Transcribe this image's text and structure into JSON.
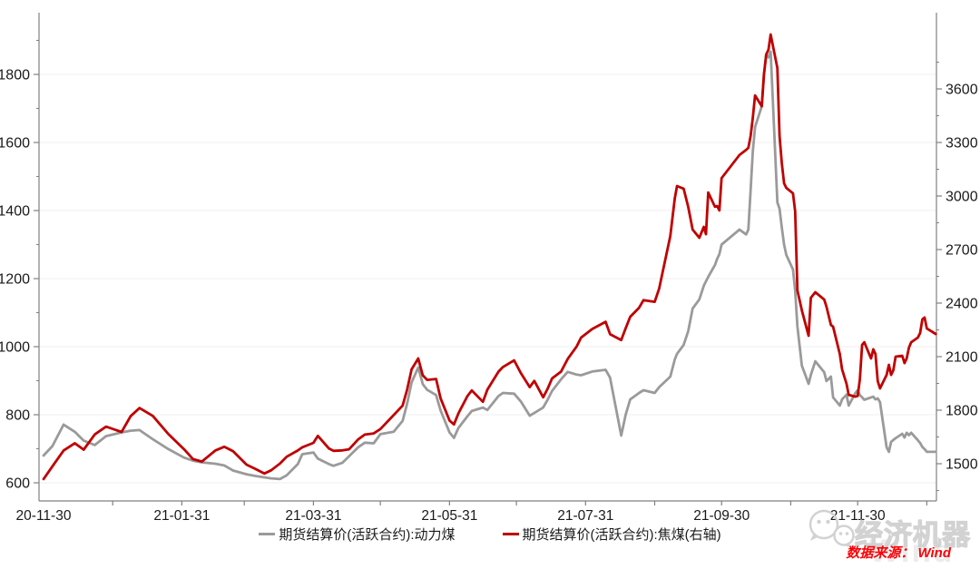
{
  "chart_data": {
    "type": "line",
    "title": "",
    "grid": "horizontal-left-axis-majors",
    "legend_position": "bottom-center",
    "left_axis": {
      "ticks": [
        600,
        800,
        1000,
        1200,
        1400,
        1600,
        1800
      ],
      "minor_step": 100
    },
    "right_axis": {
      "ticks": [
        1500,
        1800,
        2100,
        2400,
        2700,
        3000,
        3300,
        3600
      ],
      "minor_step": 150
    },
    "x_axis": {
      "start_date": "2020-11-30",
      "month_ticks": [
        "2020-12-31",
        "2021-01-31",
        "2021-02-28",
        "2021-03-31",
        "2021-04-30",
        "2021-05-31",
        "2021-06-30",
        "2021-07-31",
        "2021-08-31",
        "2021-09-30",
        "2021-10-31",
        "2021-11-30",
        "2021-12-31"
      ],
      "labeled_ticks": [
        {
          "label": "20-11-30",
          "date": "2020-11-30"
        },
        {
          "label": "21-01-31",
          "date": "2021-01-31"
        },
        {
          "label": "21-03-31",
          "date": "2021-03-31"
        },
        {
          "label": "21-05-31",
          "date": "2021-05-31"
        },
        {
          "label": "21-07-31",
          "date": "2021-07-31"
        },
        {
          "label": "21-09-30",
          "date": "2021-09-30"
        },
        {
          "label": "21-11-30",
          "date": "2021-11-30"
        }
      ]
    },
    "dates": [
      "2020-11-30",
      "2020-12-04",
      "2020-12-09",
      "2020-12-14",
      "2020-12-18",
      "2020-12-23",
      "2020-12-28",
      "2021-01-04",
      "2021-01-08",
      "2021-01-12",
      "2021-01-18",
      "2021-01-25",
      "2021-02-01",
      "2021-02-05",
      "2021-02-09",
      "2021-02-15",
      "2021-02-19",
      "2021-02-23",
      "2021-03-01",
      "2021-03-05",
      "2021-03-09",
      "2021-03-12",
      "2021-03-16",
      "2021-03-19",
      "2021-03-24",
      "2021-03-26",
      "2021-03-31",
      "2021-04-02",
      "2021-04-07",
      "2021-04-09",
      "2021-04-13",
      "2021-04-16",
      "2021-04-20",
      "2021-04-23",
      "2021-04-27",
      "2021-04-30",
      "2021-05-06",
      "2021-05-10",
      "2021-05-12",
      "2021-05-14",
      "2021-05-17",
      "2021-05-19",
      "2021-05-21",
      "2021-05-25",
      "2021-05-27",
      "2021-05-31",
      "2021-06-02",
      "2021-06-04",
      "2021-06-08",
      "2021-06-10",
      "2021-06-15",
      "2021-06-17",
      "2021-06-22",
      "2021-06-24",
      "2021-06-29",
      "2021-07-02",
      "2021-07-06",
      "2021-07-08",
      "2021-07-12",
      "2021-07-14",
      "2021-07-16",
      "2021-07-20",
      "2021-07-23",
      "2021-07-27",
      "2021-07-29",
      "2021-08-03",
      "2021-08-09",
      "2021-08-11",
      "2021-08-16",
      "2021-08-18",
      "2021-08-20",
      "2021-08-24",
      "2021-08-26",
      "2021-08-31",
      "2021-09-02",
      "2021-09-07",
      "2021-09-09",
      "2021-09-10",
      "2021-09-13",
      "2021-09-15",
      "2021-09-17",
      "2021-09-20",
      "2021-09-22",
      "2021-09-23",
      "2021-09-24",
      "2021-09-27",
      "2021-09-28",
      "2021-09-29",
      "2021-09-30",
      "2021-10-08",
      "2021-10-11",
      "2021-10-12",
      "2021-10-13",
      "2021-10-14",
      "2021-10-15",
      "2021-10-18",
      "2021-10-19",
      "2021-10-20",
      "2021-10-21",
      "2021-10-22",
      "2021-10-25",
      "2021-10-26",
      "2021-10-27",
      "2021-10-28",
      "2021-10-29",
      "2021-11-01",
      "2021-11-02",
      "2021-11-03",
      "2021-11-05",
      "2021-11-08",
      "2021-11-09",
      "2021-11-11",
      "2021-11-15",
      "2021-11-16",
      "2021-11-18",
      "2021-11-19",
      "2021-11-22",
      "2021-11-23",
      "2021-11-25",
      "2021-11-26",
      "2021-11-29",
      "2021-11-30",
      "2021-12-01",
      "2021-12-02",
      "2021-12-03",
      "2021-12-06",
      "2021-12-07",
      "2021-12-08",
      "2021-12-09",
      "2021-12-10",
      "2021-12-13",
      "2021-12-14",
      "2021-12-15",
      "2021-12-16",
      "2021-12-17",
      "2021-12-20",
      "2021-12-21",
      "2021-12-22",
      "2021-12-23",
      "2021-12-24",
      "2021-12-27",
      "2021-12-28",
      "2021-12-29",
      "2021-12-30",
      "2021-12-31",
      "2022-01-04"
    ],
    "series": [
      {
        "name": "期货结算价(活跃合约):动力煤",
        "axis": "left",
        "color": "#9a9a9a",
        "values": [
          680,
          708,
          771,
          750,
          724,
          711,
          737,
          748,
          753,
          755,
          728,
          699,
          674,
          665,
          660,
          656,
          651,
          636,
          625,
          620,
          616,
          613,
          611,
          622,
          655,
          684,
          689,
          671,
          655,
          650,
          659,
          678,
          704,
          718,
          716,
          743,
          750,
          782,
          833,
          895,
          939,
          890,
          873,
          858,
          813,
          748,
          732,
          761,
          795,
          811,
          821,
          814,
          855,
          864,
          862,
          839,
          797,
          805,
          821,
          844,
          870,
          904,
          926,
          918,
          916,
          927,
          932,
          909,
          739,
          800,
          845,
          864,
          872,
          864,
          881,
          912,
          962,
          979,
          1005,
          1045,
          1112,
          1139,
          1179,
          1192,
          1205,
          1240,
          1258,
          1272,
          1300,
          1344,
          1330,
          1344,
          1459,
          1573,
          1645,
          1707,
          1800,
          1859,
          1850,
          1867,
          1424,
          1405,
          1350,
          1300,
          1270,
          1227,
          1165,
          1059,
          944,
          891,
          917,
          957,
          925,
          899,
          912,
          851,
          827,
          845,
          859,
          827,
          864,
          872,
          858,
          851,
          844,
          851,
          853,
          845,
          848,
          837,
          704,
          691,
          720,
          726,
          731,
          744,
          733,
          747,
          740,
          747,
          725,
          717,
          705,
          699,
          691,
          691
        ]
      },
      {
        "name": "期货结算价(活跃合约):焦煤(右轴)",
        "axis": "right",
        "color": "#c00000",
        "values": [
          1414,
          1486,
          1574,
          1615,
          1579,
          1664,
          1708,
          1678,
          1766,
          1812,
          1768,
          1666,
          1581,
          1526,
          1512,
          1574,
          1595,
          1570,
          1495,
          1471,
          1445,
          1463,
          1501,
          1539,
          1574,
          1592,
          1617,
          1656,
          1585,
          1572,
          1575,
          1581,
          1636,
          1663,
          1670,
          1694,
          1773,
          1826,
          1916,
          2029,
          2090,
          1995,
          1970,
          1975,
          1867,
          1742,
          1720,
          1782,
          1878,
          1911,
          1847,
          1915,
          2016,
          2042,
          2079,
          2008,
          1929,
          1964,
          1872,
          1920,
          1978,
          2016,
          2087,
          2157,
          2207,
          2255,
          2295,
          2226,
          2193,
          2259,
          2323,
          2374,
          2417,
          2407,
          2481,
          2776,
          2985,
          3056,
          3041,
          2940,
          2812,
          2766,
          2827,
          2786,
          3020,
          2940,
          2944,
          2919,
          3100,
          3230,
          3259,
          3270,
          3336,
          3437,
          3564,
          3503,
          3681,
          3793,
          3820,
          3905,
          3717,
          3336,
          3183,
          3071,
          3046,
          3015,
          2914,
          2471,
          2359,
          2217,
          2430,
          2461,
          2420,
          2380,
          2278,
          2268,
          2115,
          2029,
          1948,
          1886,
          1876,
          1880,
          1973,
          2166,
          2181,
          2090,
          2141,
          2115,
          1963,
          1922,
          1998,
          2054,
          1998,
          2024,
          2100,
          2105,
          2064,
          2090,
          2151,
          2181,
          2207,
          2232,
          2309,
          2319,
          2258,
          2227
        ]
      }
    ]
  },
  "legend": {
    "item1": "期货结算价(活跃合约):动力煤",
    "item2": "期货结算价(活跃合约):焦煤(右轴)"
  },
  "source": {
    "text": "数据来源： Wind"
  },
  "watermark": {
    "brand": "经济机器",
    "background_text": "Wind"
  },
  "colors": {
    "thermal_coal_line": "#9a9a9a",
    "coking_coal_line": "#c00000",
    "axis": "#808080",
    "grid": "#efefef",
    "tick_label": "#1a1a1a",
    "source_text": "#fb0005",
    "watermark": "#d2d2d2"
  }
}
